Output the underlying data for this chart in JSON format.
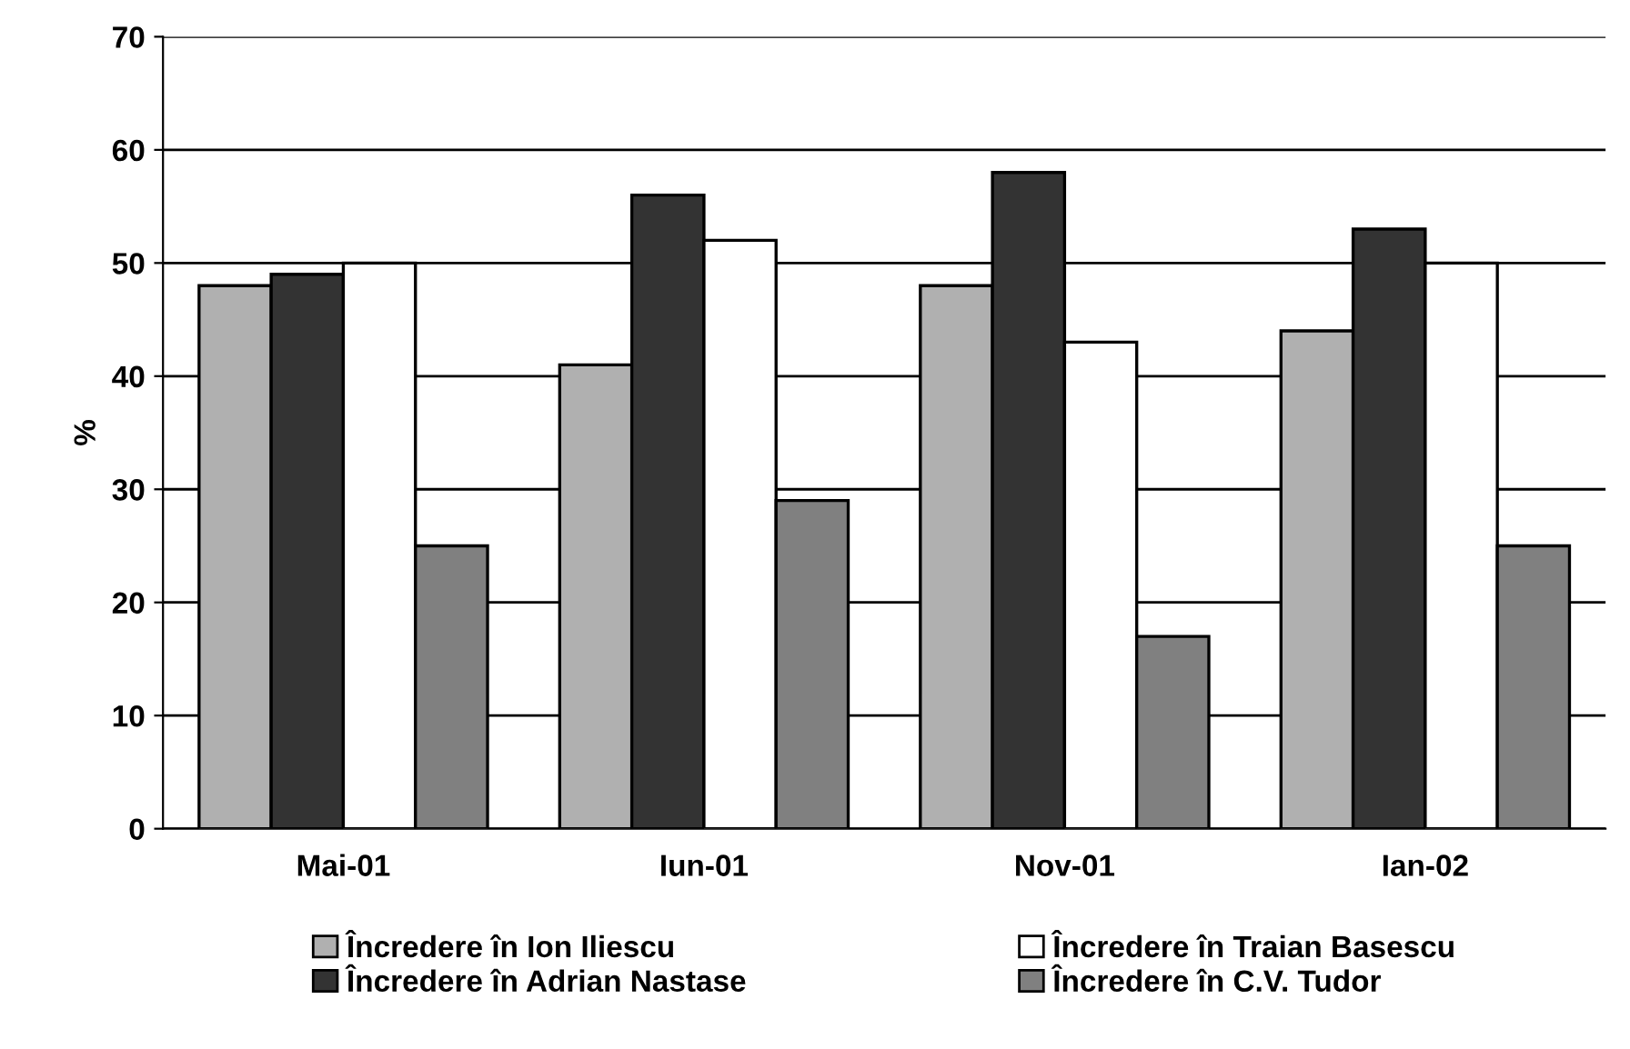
{
  "chart_data": {
    "type": "bar",
    "ylabel": "%",
    "categories": [
      "Mai-01",
      "Iun-01",
      "Nov-01",
      "Ian-02"
    ],
    "series": [
      {
        "name": "Încredere în Ion Iliescu",
        "color": "#b0b0b0",
        "values": [
          48,
          41,
          48,
          44
        ]
      },
      {
        "name": "Încredere în Adrian Nastase",
        "color": "#333333",
        "values": [
          49,
          56,
          58,
          53
        ]
      },
      {
        "name": "Încredere în Traian Basescu",
        "color": "#ffffff",
        "values": [
          50,
          52,
          43,
          50
        ]
      },
      {
        "name": "Încredere în C.V. Tudor",
        "color": "#808080",
        "values": [
          25,
          29,
          17,
          25
        ]
      }
    ],
    "ylim": [
      0,
      70
    ],
    "yticks": [
      0,
      10,
      20,
      30,
      40,
      50,
      60,
      70
    ],
    "grid": "y",
    "legend": "bottom"
  }
}
